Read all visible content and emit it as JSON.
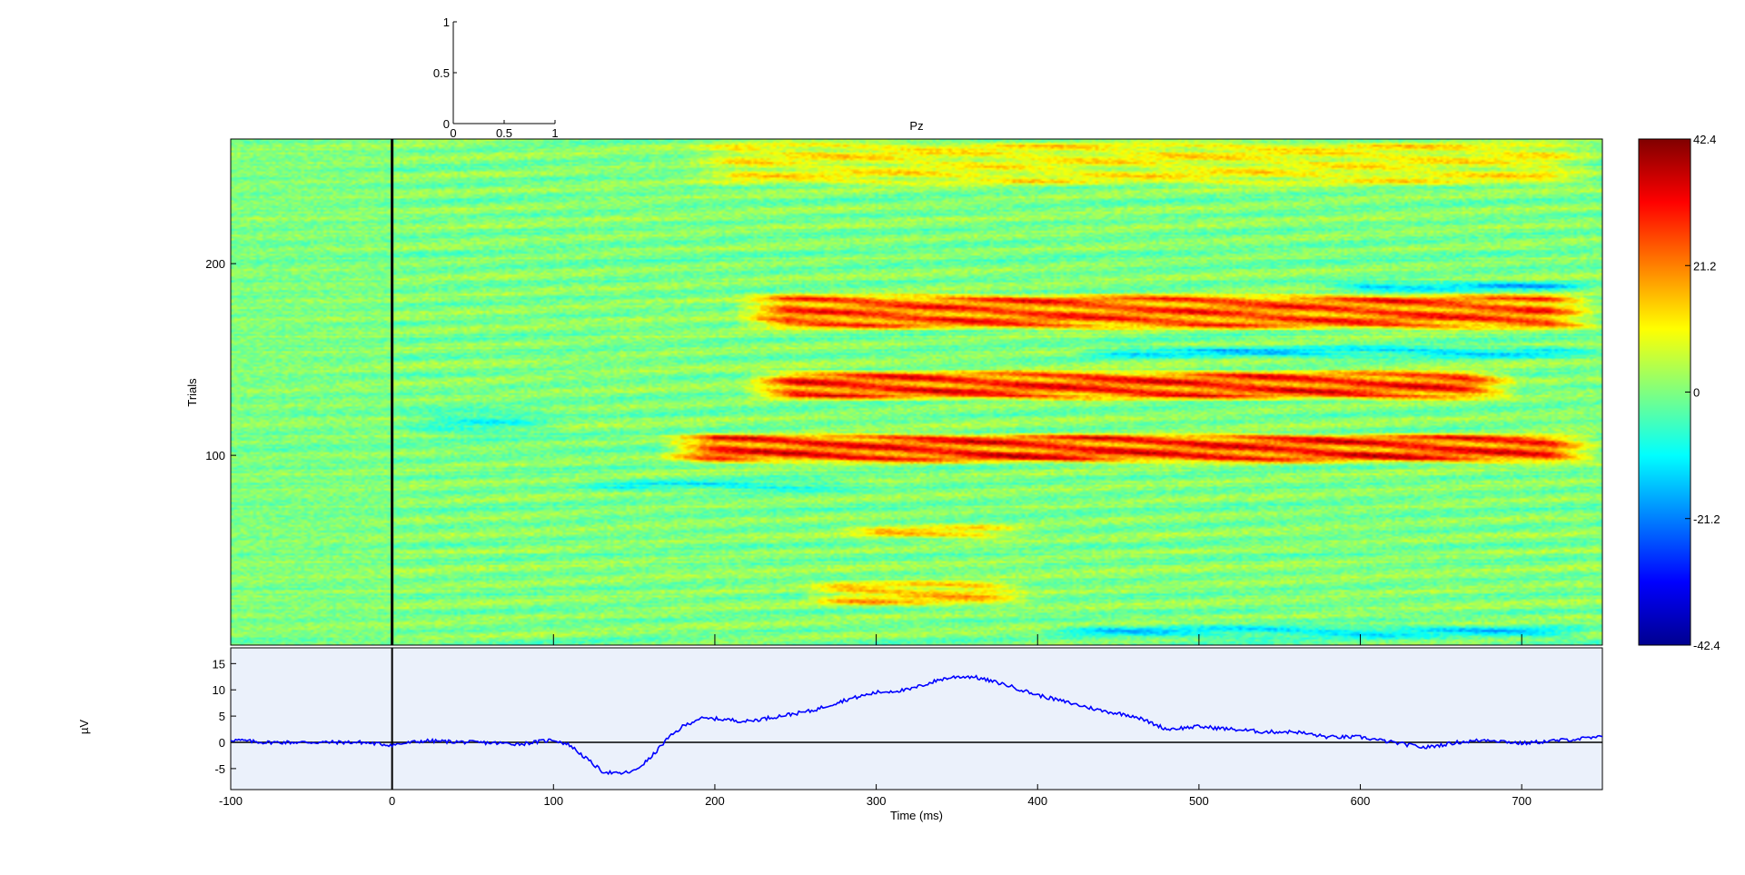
{
  "chart_data": [
    {
      "type": "line",
      "title": "",
      "xlabel": "",
      "ylabel": "",
      "xlim": [
        0,
        1
      ],
      "ylim": [
        0,
        1
      ],
      "xticks": [
        "0",
        "0.5",
        "1"
      ],
      "yticks": [
        "0",
        "0.5",
        "1"
      ],
      "series": []
    },
    {
      "type": "heatmap",
      "title": "Pz",
      "xlabel": "",
      "ylabel": "Trials",
      "xlim": [
        -100,
        750
      ],
      "ylim": [
        1,
        265
      ],
      "yticks": [
        "100",
        "200"
      ],
      "time_marker_ms": 0,
      "colormap": "jet",
      "bands": [
        {
          "trials": [
            165,
            185
          ],
          "t_ms": [
            210,
            750
          ],
          "amplitude_uV": 30
        },
        {
          "trials": [
            128,
            145
          ],
          "t_ms": [
            215,
            700
          ],
          "amplitude_uV": 33
        },
        {
          "trials": [
            95,
            112
          ],
          "t_ms": [
            165,
            750
          ],
          "amplitude_uV": 35
        },
        {
          "trials": [
            55,
            65
          ],
          "t_ms": [
            270,
            400
          ],
          "amplitude_uV": 15
        },
        {
          "trials": [
            20,
            35
          ],
          "t_ms": [
            250,
            400
          ],
          "amplitude_uV": 18
        },
        {
          "trials": [
            150,
            158
          ],
          "t_ms": [
            420,
            750
          ],
          "amplitude_uV": -15
        },
        {
          "trials": [
            185,
            192
          ],
          "t_ms": [
            570,
            750
          ],
          "amplitude_uV": -18
        },
        {
          "trials": [
            3,
            12
          ],
          "t_ms": [
            400,
            750
          ],
          "amplitude_uV": -14
        },
        {
          "trials": [
            80,
            88
          ],
          "t_ms": [
            110,
            300
          ],
          "amplitude_uV": -12
        },
        {
          "trials": [
            110,
            125
          ],
          "t_ms": [
            0,
            110
          ],
          "amplitude_uV": -9
        },
        {
          "trials": [
            240,
            265
          ],
          "t_ms": [
            180,
            750
          ],
          "amplitude_uV": 12
        }
      ]
    },
    {
      "type": "colorbar",
      "ylim": [
        -42.4,
        42.4
      ],
      "ticks": [
        "42.4",
        "21.2",
        "0",
        "-21.2",
        "-42.4"
      ]
    },
    {
      "type": "line",
      "title": "",
      "xlabel": "Time (ms)",
      "ylabel": "µV",
      "xlim": [
        -100,
        750
      ],
      "ylim": [
        -9,
        18
      ],
      "xticks": [
        "-100",
        "0",
        "100",
        "200",
        "300",
        "400",
        "500",
        "600",
        "700"
      ],
      "yticks": [
        "-5",
        "0",
        "5",
        "10",
        "15"
      ],
      "series": [
        {
          "x": [
            -100,
            -80,
            -50,
            -20,
            0,
            20,
            50,
            80,
            100,
            110,
            120,
            130,
            140,
            150,
            160,
            170,
            180,
            190,
            200,
            220,
            240,
            260,
            280,
            300,
            320,
            340,
            350,
            360,
            380,
            400,
            420,
            440,
            460,
            480,
            500,
            520,
            540,
            560,
            580,
            600,
            620,
            640,
            660,
            680,
            700,
            720,
            750
          ],
          "y": [
            0.5,
            0,
            0,
            0,
            -0.5,
            0.3,
            0,
            -0.3,
            0.5,
            -0.5,
            -3,
            -5.5,
            -6,
            -5.5,
            -3,
            0.5,
            3,
            4.5,
            4.5,
            4,
            5,
            6,
            8,
            9.5,
            10,
            12,
            12.5,
            12.5,
            11,
            9,
            7.5,
            6,
            5,
            2.5,
            3,
            2.5,
            2,
            2,
            1,
            1,
            0,
            -1,
            0,
            0.5,
            -0.2,
            0.3,
            1
          ]
        }
      ]
    }
  ]
}
